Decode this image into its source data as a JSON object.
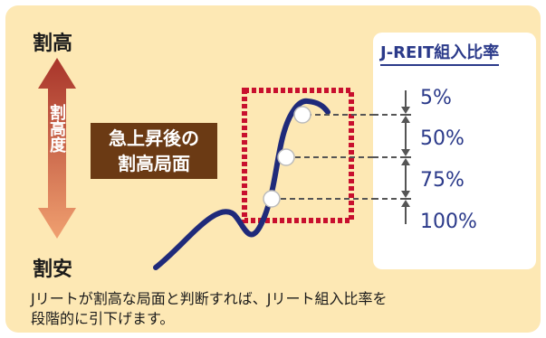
{
  "labels": {
    "top": "割高",
    "bottom": "割安",
    "vertical": "割高度"
  },
  "phase_box": {
    "line1": "急上昇後の",
    "line2": "割高局面"
  },
  "ratio": {
    "title": "J-REIT組入比率",
    "levels": [
      "5%",
      "50%",
      "75%",
      "100%"
    ]
  },
  "caption": {
    "line1": "Jリートが割高な局面と判断すれば、Jリート組入比率を",
    "line2": "段階的に引下げます。"
  },
  "colors": {
    "panel_bg": "#fde8b4",
    "arrow_top": "#a8342a",
    "arrow_bottom": "#f0a070",
    "curve": "#1f2a7a",
    "dotted_box": "#c8102e",
    "phase_box_bg": "#6b3a14",
    "ratio_text": "#2b3a8a"
  }
}
